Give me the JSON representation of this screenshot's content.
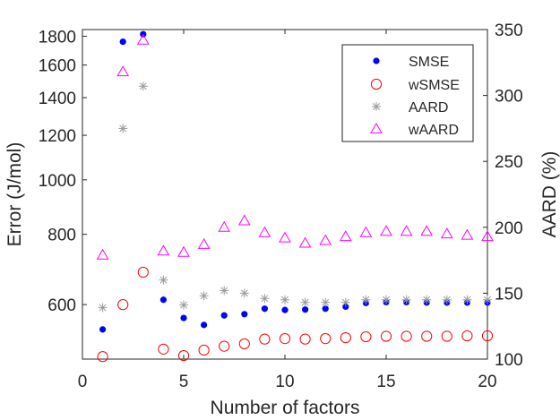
{
  "chart_data": {
    "type": "scatter",
    "title": "",
    "xlabel": "Number of factors",
    "ylabel_left": "Error (J/mol)",
    "ylabel_right": "AARD (%)",
    "xlim": [
      0,
      20
    ],
    "ylim_left": [
      480,
      1850
    ],
    "ylim_left_scale": "log",
    "ylim_right": [
      100,
      350
    ],
    "grid": false,
    "legend_position": "top-right",
    "x_ticks": [
      0,
      5,
      10,
      15,
      20
    ],
    "y_left_ticks": [
      600,
      800,
      1000,
      1200,
      1400,
      1600,
      1800
    ],
    "y_right_ticks": [
      100,
      150,
      200,
      250,
      300,
      350
    ],
    "series": [
      {
        "name": "SMSE",
        "axis": "left",
        "marker": "filled-circle",
        "color": "#0000ff",
        "x": [
          1,
          2,
          3,
          4,
          5,
          6,
          7,
          8,
          9,
          10,
          11,
          12,
          13,
          14,
          15,
          16,
          17,
          18,
          19,
          20
        ],
        "y": [
          542,
          1760,
          1815,
          612,
          568,
          552,
          574,
          577,
          590,
          587,
          588,
          590,
          595,
          604,
          606,
          606,
          605,
          605,
          605,
          605
        ]
      },
      {
        "name": "wSMSE",
        "axis": "left",
        "marker": "open-circle",
        "color": "#ff0000",
        "x": [
          1,
          2,
          3,
          4,
          5,
          6,
          7,
          8,
          9,
          10,
          11,
          12,
          13,
          14,
          15,
          16,
          17,
          18,
          19,
          20
        ],
        "y": [
          485,
          600,
          685,
          500,
          487,
          498,
          506,
          511,
          521,
          522,
          521,
          522,
          524,
          526,
          527,
          527,
          527,
          527,
          528,
          528
        ]
      },
      {
        "name": "AARD",
        "axis": "right",
        "marker": "asterisk",
        "color": "#999999",
        "x": [
          1,
          2,
          3,
          4,
          5,
          6,
          7,
          8,
          9,
          10,
          11,
          12,
          13,
          14,
          15,
          16,
          17,
          18,
          19,
          20
        ],
        "y": [
          139,
          275,
          307,
          160,
          141,
          148,
          152,
          150,
          146,
          145,
          143,
          143,
          143,
          145,
          145,
          145,
          145,
          145,
          145,
          145
        ]
      },
      {
        "name": "wAARD",
        "axis": "right",
        "marker": "open-triangle",
        "color": "#ff00ff",
        "x": [
          1,
          2,
          3,
          4,
          5,
          6,
          7,
          8,
          9,
          10,
          11,
          12,
          13,
          14,
          15,
          16,
          17,
          18,
          19,
          20
        ],
        "y": [
          179,
          318,
          342,
          182,
          181,
          187,
          200,
          205,
          196,
          192,
          188,
          190,
          193,
          196,
          197,
          197,
          197,
          195,
          194,
          193
        ]
      }
    ]
  }
}
